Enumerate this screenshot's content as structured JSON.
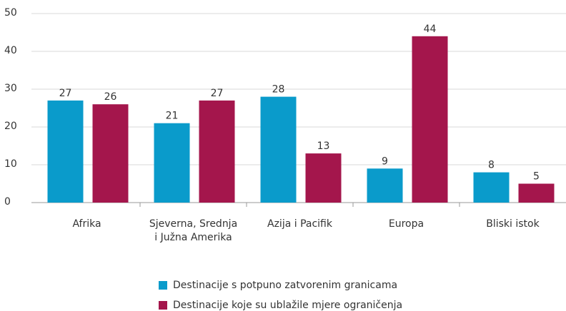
{
  "chart_data": {
    "type": "bar",
    "categories": [
      "Afrika",
      "Sjeverna, Srednja i Južna Amerika",
      "Azija i Pacifik",
      "Europa",
      "Bliski istok"
    ],
    "series": [
      {
        "name": "Destinacije s potpuno zatvorenim granicama",
        "color": "#0a9bcb",
        "values": [
          27,
          21,
          28,
          9,
          8
        ]
      },
      {
        "name": "Destinacije koje su ublažile mjere ograničenja",
        "color": "#a4164c",
        "values": [
          26,
          27,
          13,
          44,
          5
        ]
      }
    ],
    "ylim": [
      0,
      50
    ],
    "yticks": [
      0,
      10,
      20,
      30,
      40,
      50
    ],
    "grid": true,
    "legend": "bottom"
  }
}
